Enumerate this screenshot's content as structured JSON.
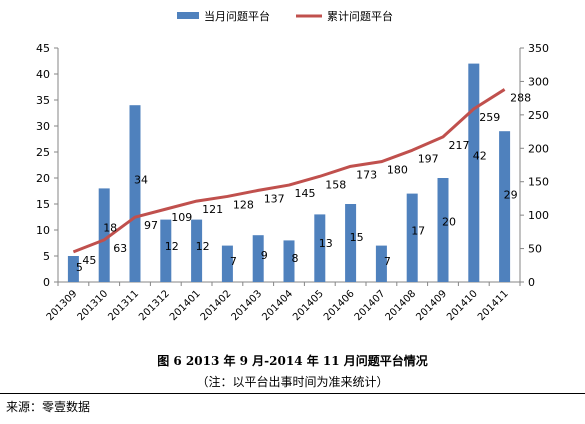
{
  "chart_data": {
    "type": "bar",
    "categories": [
      "201309",
      "201310",
      "201311",
      "201312",
      "201401",
      "201402",
      "201403",
      "201404",
      "201405",
      "201406",
      "201407",
      "201408",
      "201409",
      "201410",
      "201411"
    ],
    "series": [
      {
        "name": "当月问题平台",
        "type": "bar",
        "axis": "left",
        "color": "#4F81BD",
        "values": [
          5,
          18,
          34,
          12,
          12,
          7,
          9,
          8,
          13,
          15,
          7,
          17,
          20,
          42,
          29
        ]
      },
      {
        "name": "累计问题平台",
        "type": "line",
        "axis": "right",
        "color": "#C0504D",
        "values": [
          45,
          63,
          97,
          109,
          121,
          128,
          137,
          145,
          158,
          173,
          180,
          197,
          217,
          259,
          288
        ]
      }
    ],
    "ylim_left": [
      0,
      45
    ],
    "yticks_left": [
      0,
      5,
      10,
      15,
      20,
      25,
      30,
      35,
      40,
      45
    ],
    "ylim_right": [
      0,
      350
    ],
    "yticks_right": [
      0,
      50,
      100,
      150,
      200,
      250,
      300,
      350
    ],
    "legend_position": "top",
    "grid": false
  },
  "caption": {
    "title": "图 6 2013 年 9 月-2014 年 11 月问题平台情况",
    "note": "（注：以平台出事时间为准来统计）"
  },
  "source": "来源：零壹数据"
}
